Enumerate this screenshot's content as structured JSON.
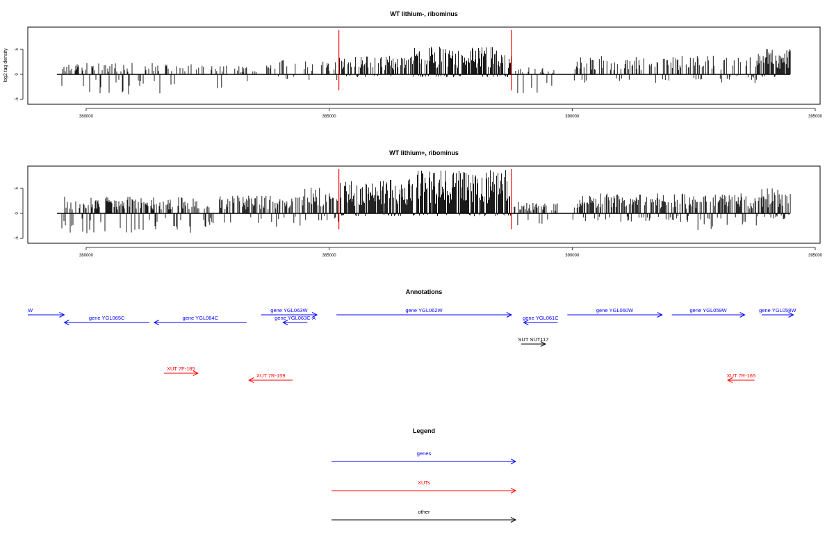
{
  "colors": {
    "gene": "#0000ff",
    "xut": "#ff0000",
    "other": "#000000",
    "boundary": "#ff0000",
    "trace": "#000000"
  },
  "chart_data": [
    {
      "type": "bar",
      "title": "WT lithium-, ribominus",
      "ylabel": "log2 tag density",
      "xlim": [
        378800,
        395100
      ],
      "ylim": [
        -6,
        9
      ],
      "xticks": [
        380000,
        385000,
        390000,
        395000
      ],
      "yticks": [
        -5,
        0,
        5
      ],
      "ytick_labels": [
        "-5",
        "0",
        "5"
      ],
      "data_range": [
        379500,
        394500
      ],
      "boundary_lines": [
        385200,
        388750
      ],
      "signal_profile": [
        {
          "x": [
            379500,
            382200
          ],
          "pos": 2.0,
          "neg": -3.5,
          "density": 0.45
        },
        {
          "x": [
            382200,
            383700
          ],
          "pos": 1.5,
          "neg": -2.5,
          "density": 0.25
        },
        {
          "x": [
            383700,
            385200
          ],
          "pos": 2.5,
          "neg": -1.0,
          "density": 0.3
        },
        {
          "x": [
            385200,
            386700
          ],
          "pos": 3.2,
          "neg": -0.5,
          "density": 0.55
        },
        {
          "x": [
            386700,
            388750
          ],
          "pos": 4.8,
          "neg": -0.5,
          "density": 0.95
        },
        {
          "x": [
            388750,
            389700
          ],
          "pos": 1.2,
          "neg": -3.5,
          "density": 0.4
        },
        {
          "x": [
            389700,
            390000
          ],
          "pos": 0.0,
          "neg": 0.0,
          "density": 0.0
        },
        {
          "x": [
            390000,
            393800
          ],
          "pos": 3.2,
          "neg": -1.5,
          "density": 0.45
        },
        {
          "x": [
            393800,
            394500
          ],
          "pos": 4.5,
          "neg": -0.5,
          "density": 0.9
        }
      ]
    },
    {
      "type": "bar",
      "title": "WT lithium+, ribominus",
      "ylabel": "",
      "xlim": [
        378800,
        395100
      ],
      "ylim": [
        -6,
        9
      ],
      "xticks": [
        380000,
        385000,
        390000,
        395000
      ],
      "yticks": [
        -5,
        0,
        5
      ],
      "ytick_labels": [
        "-5",
        "0",
        "5"
      ],
      "data_range": [
        379500,
        394500
      ],
      "boundary_lines": [
        385200,
        388750
      ],
      "signal_profile": [
        {
          "x": [
            379500,
            382500
          ],
          "pos": 3.0,
          "neg": -3.5,
          "density": 0.7
        },
        {
          "x": [
            382500,
            384500
          ],
          "pos": 3.2,
          "neg": -2.5,
          "density": 0.6
        },
        {
          "x": [
            384500,
            385200
          ],
          "pos": 4.5,
          "neg": -1.5,
          "density": 0.7
        },
        {
          "x": [
            385200,
            386800
          ],
          "pos": 6.0,
          "neg": -0.5,
          "density": 0.95
        },
        {
          "x": [
            386800,
            388750
          ],
          "pos": 7.5,
          "neg": -0.5,
          "density": 1.0
        },
        {
          "x": [
            388750,
            389700
          ],
          "pos": 2.0,
          "neg": -2.5,
          "density": 0.55
        },
        {
          "x": [
            389700,
            390000
          ],
          "pos": 0.0,
          "neg": 0.0,
          "density": 0.0
        },
        {
          "x": [
            390000,
            392500
          ],
          "pos": 3.5,
          "neg": -1.5,
          "density": 0.75
        },
        {
          "x": [
            392500,
            393800
          ],
          "pos": 3.5,
          "neg": -3.0,
          "density": 0.75
        },
        {
          "x": [
            393800,
            394500
          ],
          "pos": 4.5,
          "neg": -1.0,
          "density": 0.9
        }
      ]
    }
  ],
  "annotations": {
    "title": "Annotations",
    "xlim": [
      378800,
      395100
    ],
    "features": [
      {
        "label": "W",
        "start": 378800,
        "end": 379550,
        "strand": "+",
        "kind": "gene",
        "row": 0
      },
      {
        "label": "gene YGL065C",
        "start": 379550,
        "end": 381300,
        "strand": "-",
        "kind": "gene",
        "row": 1
      },
      {
        "label": "gene YGL064C",
        "start": 381400,
        "end": 383300,
        "strand": "-",
        "kind": "gene",
        "row": 1
      },
      {
        "label": "gene YGL063W",
        "start": 383600,
        "end": 384750,
        "strand": "+",
        "kind": "gene",
        "row": 0
      },
      {
        "label": "gene YGL063C-A",
        "start": 384050,
        "end": 384550,
        "strand": "-",
        "kind": "gene",
        "row": 1
      },
      {
        "label": "gene YGL062W",
        "start": 385150,
        "end": 388750,
        "strand": "+",
        "kind": "gene",
        "row": 0
      },
      {
        "label": "gene YGL061C",
        "start": 389000,
        "end": 389700,
        "strand": "-",
        "kind": "gene",
        "row": 1
      },
      {
        "label": "gene YGL060W",
        "start": 389900,
        "end": 391850,
        "strand": "+",
        "kind": "gene",
        "row": 0
      },
      {
        "label": "gene YGL059W",
        "start": 392050,
        "end": 393550,
        "strand": "+",
        "kind": "gene",
        "row": 0
      },
      {
        "label": "gene YGL058W",
        "start": 393900,
        "end": 394550,
        "strand": "+",
        "kind": "gene",
        "row": 0
      },
      {
        "label": "SUT SUT117",
        "start": 388950,
        "end": 389450,
        "strand": "+",
        "kind": "other",
        "row": 3
      },
      {
        "label": "XUT 7F-185",
        "start": 381600,
        "end": 382300,
        "strand": "+",
        "kind": "xut",
        "row": 4
      },
      {
        "label": "XUT 7R-159",
        "start": 383350,
        "end": 384250,
        "strand": "-",
        "kind": "xut",
        "row": 5
      },
      {
        "label": "XUT 7R-165",
        "start": 393200,
        "end": 393750,
        "strand": "-",
        "kind": "xut",
        "row": 5
      }
    ]
  },
  "legend": {
    "title": "Legend",
    "items": [
      {
        "label": "genes",
        "kind": "gene"
      },
      {
        "label": "XUTs",
        "kind": "xut"
      },
      {
        "label": "other",
        "kind": "other"
      }
    ]
  }
}
